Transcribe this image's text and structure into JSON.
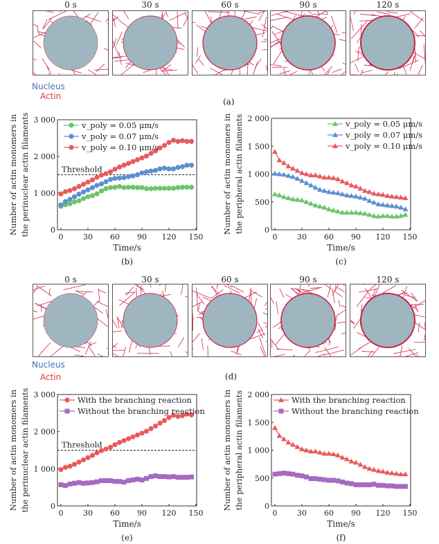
{
  "row_a": {
    "times": [
      "0 s",
      "30 s",
      "60 s",
      "90 s",
      "120 s"
    ],
    "nucleus_label": "Nucleus",
    "actin_label": "Actin",
    "caption": "(a)"
  },
  "row_d": {
    "times": [
      "0 s",
      "30 s",
      "60 s",
      "90 s",
      "120 s"
    ],
    "nucleus_label": "Nucleus",
    "actin_label": "Actin",
    "caption": "(d)"
  },
  "colors": {
    "nucleus": "#9fb6c0",
    "actin": "#c8284a",
    "green": "#6cc46c",
    "blue": "#5b8fcf",
    "red": "#e85a5e",
    "purple": "#a56bc0"
  },
  "chart_data": [
    {
      "id": "b",
      "type": "line",
      "caption": "(b)",
      "xlabel": "Time/s",
      "ylabel": [
        "Number of actin monomers in",
        "the perinuclear actin filaments"
      ],
      "xlim": [
        0,
        150
      ],
      "ylim": [
        0,
        3000
      ],
      "xticks": [
        "0",
        "30",
        "60",
        "90",
        "120",
        "150"
      ],
      "yticks": [
        "0",
        "1 000",
        "2 000",
        "3 000"
      ],
      "threshold": {
        "value": 1500,
        "label": "Threshold"
      },
      "marker": "circle",
      "legend": "top-left",
      "x": [
        0,
        5,
        10,
        15,
        20,
        25,
        30,
        35,
        40,
        45,
        50,
        55,
        60,
        65,
        70,
        75,
        80,
        85,
        90,
        95,
        100,
        105,
        110,
        115,
        120,
        125,
        130,
        135,
        140,
        145
      ],
      "series": [
        {
          "name": "v_poly = 0.05 μm/s",
          "color": "green",
          "values": [
            640,
            680,
            710,
            760,
            790,
            850,
            900,
            930,
            980,
            1060,
            1120,
            1150,
            1160,
            1180,
            1150,
            1160,
            1160,
            1150,
            1150,
            1120,
            1120,
            1130,
            1130,
            1130,
            1130,
            1130,
            1150,
            1160,
            1160,
            1160
          ]
        },
        {
          "name": "v_poly = 0.07 μm/s",
          "color": "blue",
          "values": [
            680,
            770,
            830,
            900,
            970,
            1030,
            1090,
            1150,
            1210,
            1250,
            1310,
            1370,
            1400,
            1410,
            1420,
            1450,
            1470,
            1500,
            1550,
            1580,
            1600,
            1620,
            1660,
            1680,
            1660,
            1660,
            1700,
            1720,
            1760,
            1760
          ]
        },
        {
          "name": "v_poly = 0.10 μm/s",
          "color": "red",
          "values": [
            980,
            1040,
            1070,
            1120,
            1180,
            1240,
            1300,
            1360,
            1430,
            1490,
            1530,
            1580,
            1650,
            1710,
            1760,
            1810,
            1860,
            1910,
            1960,
            2010,
            2080,
            2150,
            2230,
            2300,
            2380,
            2440,
            2410,
            2430,
            2410,
            2410
          ]
        }
      ]
    },
    {
      "id": "c",
      "type": "line",
      "caption": "(c)",
      "xlabel": "Time/s",
      "ylabel": [
        "Number of actin monomers in",
        "the peripheral actin filaments"
      ],
      "xlim": [
        0,
        150
      ],
      "ylim": [
        0,
        2000
      ],
      "xticks": [
        "0",
        "30",
        "60",
        "90",
        "120",
        "150"
      ],
      "yticks": [
        "0",
        "500",
        "1 000",
        "1 500",
        "2 000"
      ],
      "marker": "triangle",
      "legend": "top-right",
      "x": [
        0,
        5,
        10,
        15,
        20,
        25,
        30,
        35,
        40,
        45,
        50,
        55,
        60,
        65,
        70,
        75,
        80,
        85,
        90,
        95,
        100,
        105,
        110,
        115,
        120,
        125,
        130,
        135,
        140,
        145
      ],
      "series": [
        {
          "name": "v_poly = 0.05 μm/s",
          "color": "green",
          "values": [
            640,
            620,
            590,
            570,
            550,
            540,
            530,
            500,
            470,
            440,
            420,
            400,
            370,
            350,
            330,
            310,
            310,
            310,
            310,
            300,
            290,
            270,
            250,
            240,
            250,
            250,
            240,
            240,
            250,
            270
          ]
        },
        {
          "name": "v_poly = 0.07 μm/s",
          "color": "blue",
          "values": [
            1010,
            1000,
            990,
            970,
            950,
            920,
            880,
            840,
            800,
            760,
            720,
            700,
            680,
            670,
            660,
            640,
            620,
            610,
            600,
            580,
            560,
            520,
            490,
            460,
            450,
            440,
            430,
            420,
            400,
            370
          ]
        },
        {
          "name": "v_poly = 0.10 μm/s",
          "color": "red",
          "values": [
            1400,
            1250,
            1200,
            1140,
            1100,
            1060,
            1020,
            1000,
            980,
            980,
            960,
            940,
            940,
            930,
            910,
            870,
            840,
            800,
            780,
            740,
            700,
            680,
            650,
            640,
            630,
            610,
            600,
            590,
            580,
            570
          ]
        }
      ]
    },
    {
      "id": "e",
      "type": "line",
      "caption": "(e)",
      "xlabel": "Time/s",
      "ylabel": [
        "Number of actin monomers in",
        "the perinuclear actin filaments"
      ],
      "xlim": [
        0,
        150
      ],
      "ylim": [
        0,
        3000
      ],
      "xticks": [
        "0",
        "30",
        "60",
        "90",
        "120",
        "150"
      ],
      "yticks": [
        "0",
        "1 000",
        "2 000",
        "3 000"
      ],
      "threshold": {
        "value": 1500,
        "label": "Threshold"
      },
      "legend": "top-left",
      "x": [
        0,
        5,
        10,
        15,
        20,
        25,
        30,
        35,
        40,
        45,
        50,
        55,
        60,
        65,
        70,
        75,
        80,
        85,
        90,
        95,
        100,
        105,
        110,
        115,
        120,
        125,
        130,
        135,
        140,
        145
      ],
      "series": [
        {
          "name": "With the branching reaction",
          "color": "red",
          "marker": "circle",
          "values": [
            980,
            1040,
            1070,
            1120,
            1180,
            1240,
            1300,
            1360,
            1430,
            1490,
            1530,
            1580,
            1650,
            1710,
            1760,
            1810,
            1860,
            1910,
            1960,
            2010,
            2080,
            2150,
            2230,
            2300,
            2380,
            2440,
            2410,
            2430,
            2470,
            2450
          ]
        },
        {
          "name": "Without the branching reaction",
          "color": "purple",
          "marker": "square",
          "values": [
            570,
            550,
            590,
            610,
            630,
            610,
            620,
            630,
            650,
            680,
            680,
            680,
            660,
            660,
            640,
            680,
            700,
            720,
            700,
            740,
            790,
            810,
            790,
            790,
            780,
            790,
            770,
            770,
            770,
            780
          ]
        }
      ]
    },
    {
      "id": "f",
      "type": "line",
      "caption": "(f)",
      "xlabel": "Time/s",
      "ylabel": [
        "Number of actin monomers in",
        "the peripheral actin filaments"
      ],
      "xlim": [
        0,
        150
      ],
      "ylim": [
        0,
        2000
      ],
      "xticks": [
        "0",
        "30",
        "60",
        "90",
        "120",
        "150"
      ],
      "yticks": [
        "0",
        "500",
        "1 000",
        "1 500",
        "2 000"
      ],
      "legend": "top-left",
      "x": [
        0,
        5,
        10,
        15,
        20,
        25,
        30,
        35,
        40,
        45,
        50,
        55,
        60,
        65,
        70,
        75,
        80,
        85,
        90,
        95,
        100,
        105,
        110,
        115,
        120,
        125,
        130,
        135,
        140,
        145
      ],
      "series": [
        {
          "name": "With the branching reaction",
          "color": "red",
          "marker": "triangle",
          "values": [
            1400,
            1260,
            1200,
            1140,
            1100,
            1060,
            1020,
            1000,
            980,
            980,
            960,
            940,
            940,
            930,
            910,
            870,
            840,
            800,
            780,
            740,
            700,
            670,
            650,
            630,
            620,
            600,
            590,
            580,
            570,
            570
          ]
        },
        {
          "name": "Without the branching reaction",
          "color": "purple",
          "marker": "square",
          "values": [
            570,
            580,
            590,
            580,
            570,
            550,
            540,
            520,
            490,
            490,
            480,
            470,
            460,
            460,
            450,
            430,
            410,
            400,
            380,
            380,
            380,
            380,
            390,
            370,
            370,
            360,
            360,
            350,
            350,
            350
          ]
        }
      ]
    }
  ]
}
